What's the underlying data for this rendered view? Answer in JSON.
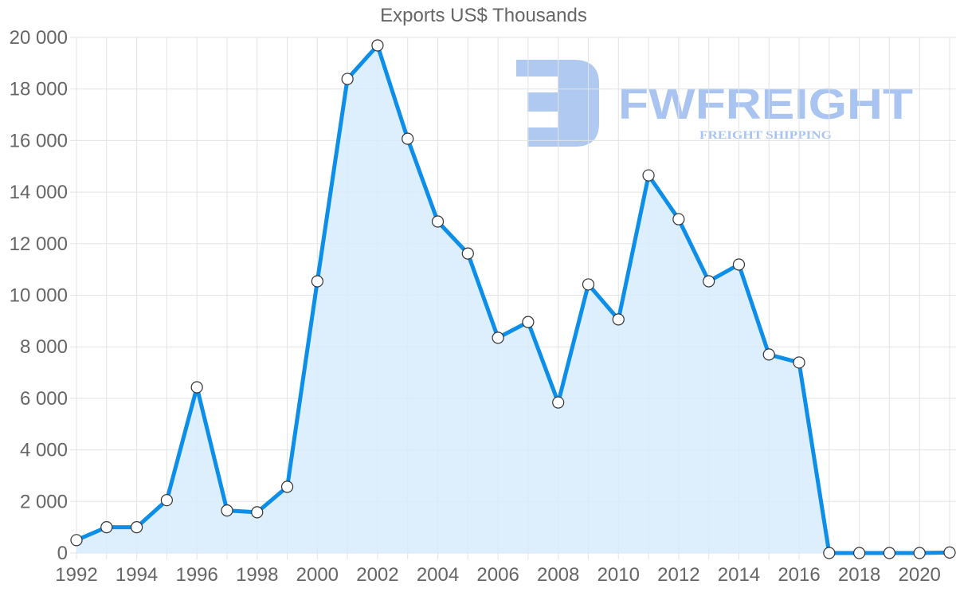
{
  "chart": {
    "title": "Exports US$ Thousands",
    "watermark": {
      "brand": "FWFREIGHT",
      "tagline": "FREIGHT SHIPPING"
    },
    "colors": {
      "line": "#0c8ee9",
      "fill": "#d7ebfb",
      "grid": "#e3e3e3",
      "point_fill": "#ffffff",
      "point_stroke": "#333333",
      "label": "#666666"
    }
  },
  "chart_data": {
    "type": "area",
    "title": "Exports US$ Thousands",
    "xlabel": "",
    "ylabel": "",
    "x": [
      1992,
      1993,
      1994,
      1995,
      1996,
      1997,
      1998,
      1999,
      2000,
      2001,
      2002,
      2003,
      2004,
      2005,
      2006,
      2007,
      2008,
      2009,
      2010,
      2011,
      2012,
      2013,
      2014,
      2015,
      2016,
      2017,
      2018,
      2019,
      2020,
      2021
    ],
    "series": [
      {
        "name": "Exports US$ Thousands",
        "values": [
          500,
          1000,
          1000,
          2050,
          6430,
          1650,
          1580,
          2570,
          10540,
          18390,
          19690,
          16070,
          12860,
          11620,
          8350,
          8960,
          5840,
          10420,
          9060,
          14650,
          12950,
          10540,
          11190,
          7700,
          7390,
          0,
          0,
          0,
          0,
          20
        ]
      }
    ],
    "x_tick_labels": [
      "1992",
      "1994",
      "1996",
      "1998",
      "2000",
      "2002",
      "2004",
      "2006",
      "2008",
      "2010",
      "2012",
      "2014",
      "2016",
      "2018",
      "2020"
    ],
    "y_tick_labels": [
      "0",
      "2 000",
      "4 000",
      "6 000",
      "8 000",
      "10 000",
      "12 000",
      "14 000",
      "16 000",
      "18 000",
      "20 000"
    ],
    "ylim": [
      0,
      20000
    ],
    "xlim": [
      1992,
      2021
    ],
    "grid": true,
    "legend": "none"
  }
}
